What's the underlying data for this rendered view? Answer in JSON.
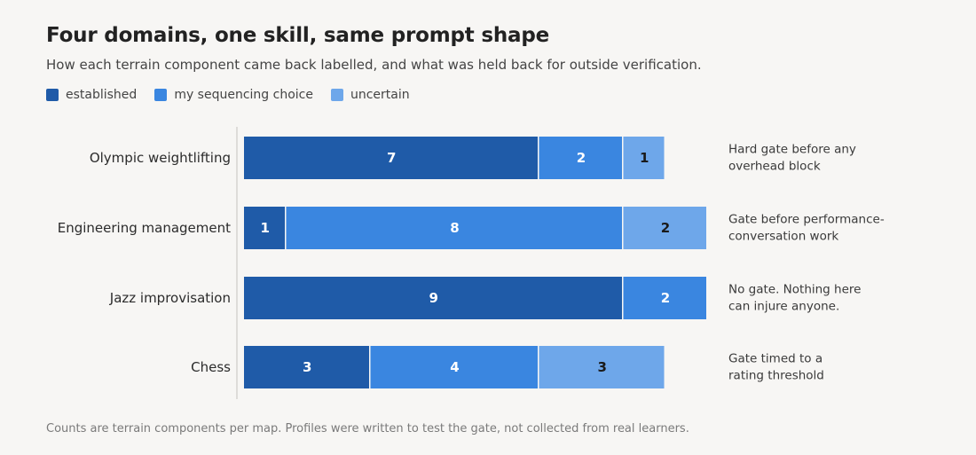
{
  "header": {
    "title": "Four domains, one skill, same prompt shape",
    "subtitle": "How each terrain component came back labelled, and what was held back for outside verification."
  },
  "footer": "Counts are terrain components per map. Profiles were written to test the gate, not collected from real learners.",
  "colors": {
    "established": "#1f5ba8",
    "my_sequencing_choice": "#3a86e0",
    "uncertain": "#6ea7ea",
    "axis_line": "#d6d4d0"
  },
  "chart_data": {
    "type": "bar",
    "orientation": "horizontal",
    "stacked": true,
    "title": "Four domains, one skill, same prompt shape",
    "xlabel": "",
    "ylabel": "",
    "legend_position": "top-left",
    "grid": false,
    "categories": [
      "Olympic weightlifting",
      "Engineering management",
      "Jazz improvisation",
      "Chess"
    ],
    "series": [
      {
        "name": "established",
        "values": [
          7,
          1,
          9,
          3
        ]
      },
      {
        "name": "my sequencing choice",
        "values": [
          2,
          8,
          2,
          4
        ]
      },
      {
        "name": "uncertain",
        "values": [
          1,
          2,
          0,
          3
        ]
      }
    ],
    "annotations": [
      [
        "Hard gate before any",
        "overhead block"
      ],
      [
        "Gate before performance-",
        "conversation work"
      ],
      [
        "No gate. Nothing here",
        "can injure anyone."
      ],
      [
        "Gate timed to a",
        "rating threshold"
      ]
    ],
    "xlim": [
      0,
      11
    ]
  }
}
